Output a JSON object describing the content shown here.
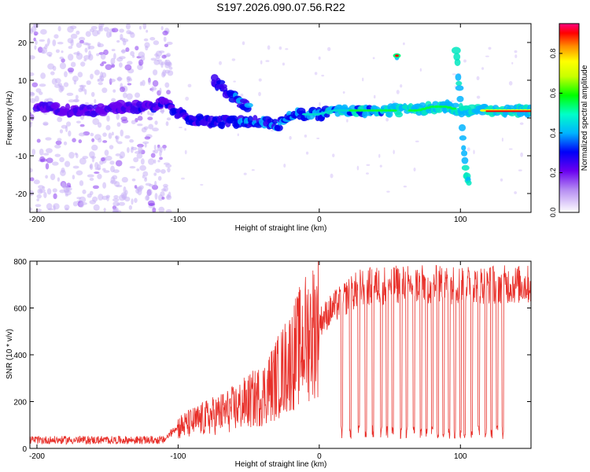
{
  "figure_title": "S197.2026.090.07.56.R22",
  "chart_data": [
    {
      "type": "heatmap",
      "title": "S197.2026.090.07.56.R22",
      "xlabel": "Height of straight line (km)",
      "ylabel": "Frequency (Hz)",
      "xlim": [
        -205,
        150
      ],
      "ylim": [
        -25,
        25
      ],
      "xticks": [
        -200,
        -100,
        0,
        100
      ],
      "yticks": [
        -20,
        -10,
        0,
        10,
        20
      ],
      "colorbar": {
        "label": "Normalized spectral amplitude",
        "range": [
          0.0,
          0.95
        ],
        "ticks": [
          "0.0",
          "0.2",
          "0.4",
          "0.6",
          "0.8"
        ],
        "tick_values": [
          0.0,
          0.2,
          0.4,
          0.6,
          0.8
        ]
      },
      "features": [
        {
          "name": "carrier track",
          "x": [
            -200,
            -180,
            -160,
            -140,
            -120,
            -110,
            -95,
            -80,
            -60,
            -40,
            -30,
            -20,
            -10,
            0,
            10,
            20,
            30,
            40,
            50,
            60,
            70,
            80,
            90,
            100,
            115,
            150
          ],
          "frequency_hz": [
            3,
            2,
            2,
            3,
            3,
            4,
            0,
            -1,
            -1,
            -1,
            -2,
            1,
            1,
            1,
            2,
            2,
            2,
            2,
            2,
            2,
            2,
            3,
            3,
            2,
            2,
            2
          ]
        },
        {
          "name": "rising branch",
          "x": [
            -75,
            -65,
            -55,
            -50
          ],
          "frequency_hz": [
            10,
            7,
            4,
            3
          ]
        },
        {
          "name": "sideband near 55 km",
          "x": [
            55
          ],
          "frequency_hz": [
            16.5
          ]
        },
        {
          "name": "dropping branch near 105 km",
          "x": [
            97,
            100,
            103,
            106
          ],
          "frequency_hz": [
            18,
            5,
            -12,
            -18
          ]
        }
      ]
    },
    {
      "type": "line",
      "title": "",
      "xlabel": "Height of straight line (km)",
      "ylabel": "SNR (10 * v/v)",
      "xlim": [
        -205,
        150
      ],
      "ylim": [
        0,
        800
      ],
      "xticks": [
        -200,
        -100,
        0,
        100
      ],
      "yticks": [
        0,
        200,
        400,
        600,
        800
      ],
      "color": "#e8302a",
      "envelope": {
        "x": [
          -205,
          -110,
          -100,
          -80,
          -60,
          -40,
          -30,
          -20,
          -10,
          0,
          10,
          20,
          30,
          50,
          100,
          150
        ],
        "y": [
          30,
          30,
          90,
          130,
          170,
          230,
          300,
          380,
          470,
          540,
          600,
          650,
          690,
          700,
          700,
          700
        ]
      },
      "dropouts_x": [
        16,
        22,
        28,
        33,
        38,
        44,
        48,
        52,
        58,
        62,
        67,
        72,
        76,
        80,
        84,
        88,
        92,
        96,
        100,
        103,
        108,
        113,
        118,
        122,
        126,
        130
      ]
    }
  ]
}
